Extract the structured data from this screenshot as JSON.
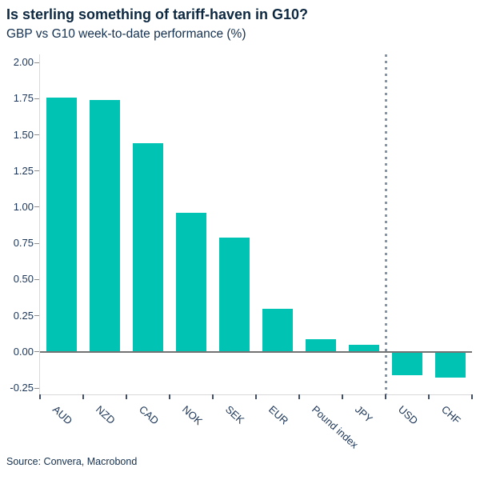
{
  "chart_data": {
    "type": "bar",
    "title": "Is sterling something of tariff-haven in G10?",
    "subtitle": "GBP vs G10 week-to-date performance (%)",
    "categories": [
      "AUD",
      "NZD",
      "CAD",
      "NOK",
      "SEK",
      "EUR",
      "Pound index",
      "JPY",
      "USD",
      "CHF"
    ],
    "values": [
      1.76,
      1.74,
      1.44,
      0.96,
      0.79,
      0.3,
      0.09,
      0.05,
      -0.16,
      -0.18
    ],
    "ytick_values": [
      2.0,
      1.75,
      1.5,
      1.25,
      1.0,
      0.75,
      0.5,
      0.25,
      0.0,
      -0.25
    ],
    "ytick_labels": [
      "2.00",
      "1.75",
      "1.50",
      "1.25",
      "1.00",
      "0.75",
      "0.50",
      "0.25",
      "0.00",
      "-0.25"
    ],
    "ylim": [
      -0.294,
      2.056
    ],
    "gridlines": "none",
    "legend": "none",
    "zero_line": true,
    "separator": {
      "after_category": "JPY",
      "style": "dotted-vertical-line"
    },
    "source": "Source: Convera, Macrobond",
    "colors": {
      "bar": "#00c3b3",
      "title": "#0d2841",
      "text": "#1c3557",
      "axis": "#d9d9d9",
      "zero_line": "#737373",
      "separator": "#8494a8",
      "ytick": "#8c8c8c",
      "xtick": "#44506b"
    }
  }
}
